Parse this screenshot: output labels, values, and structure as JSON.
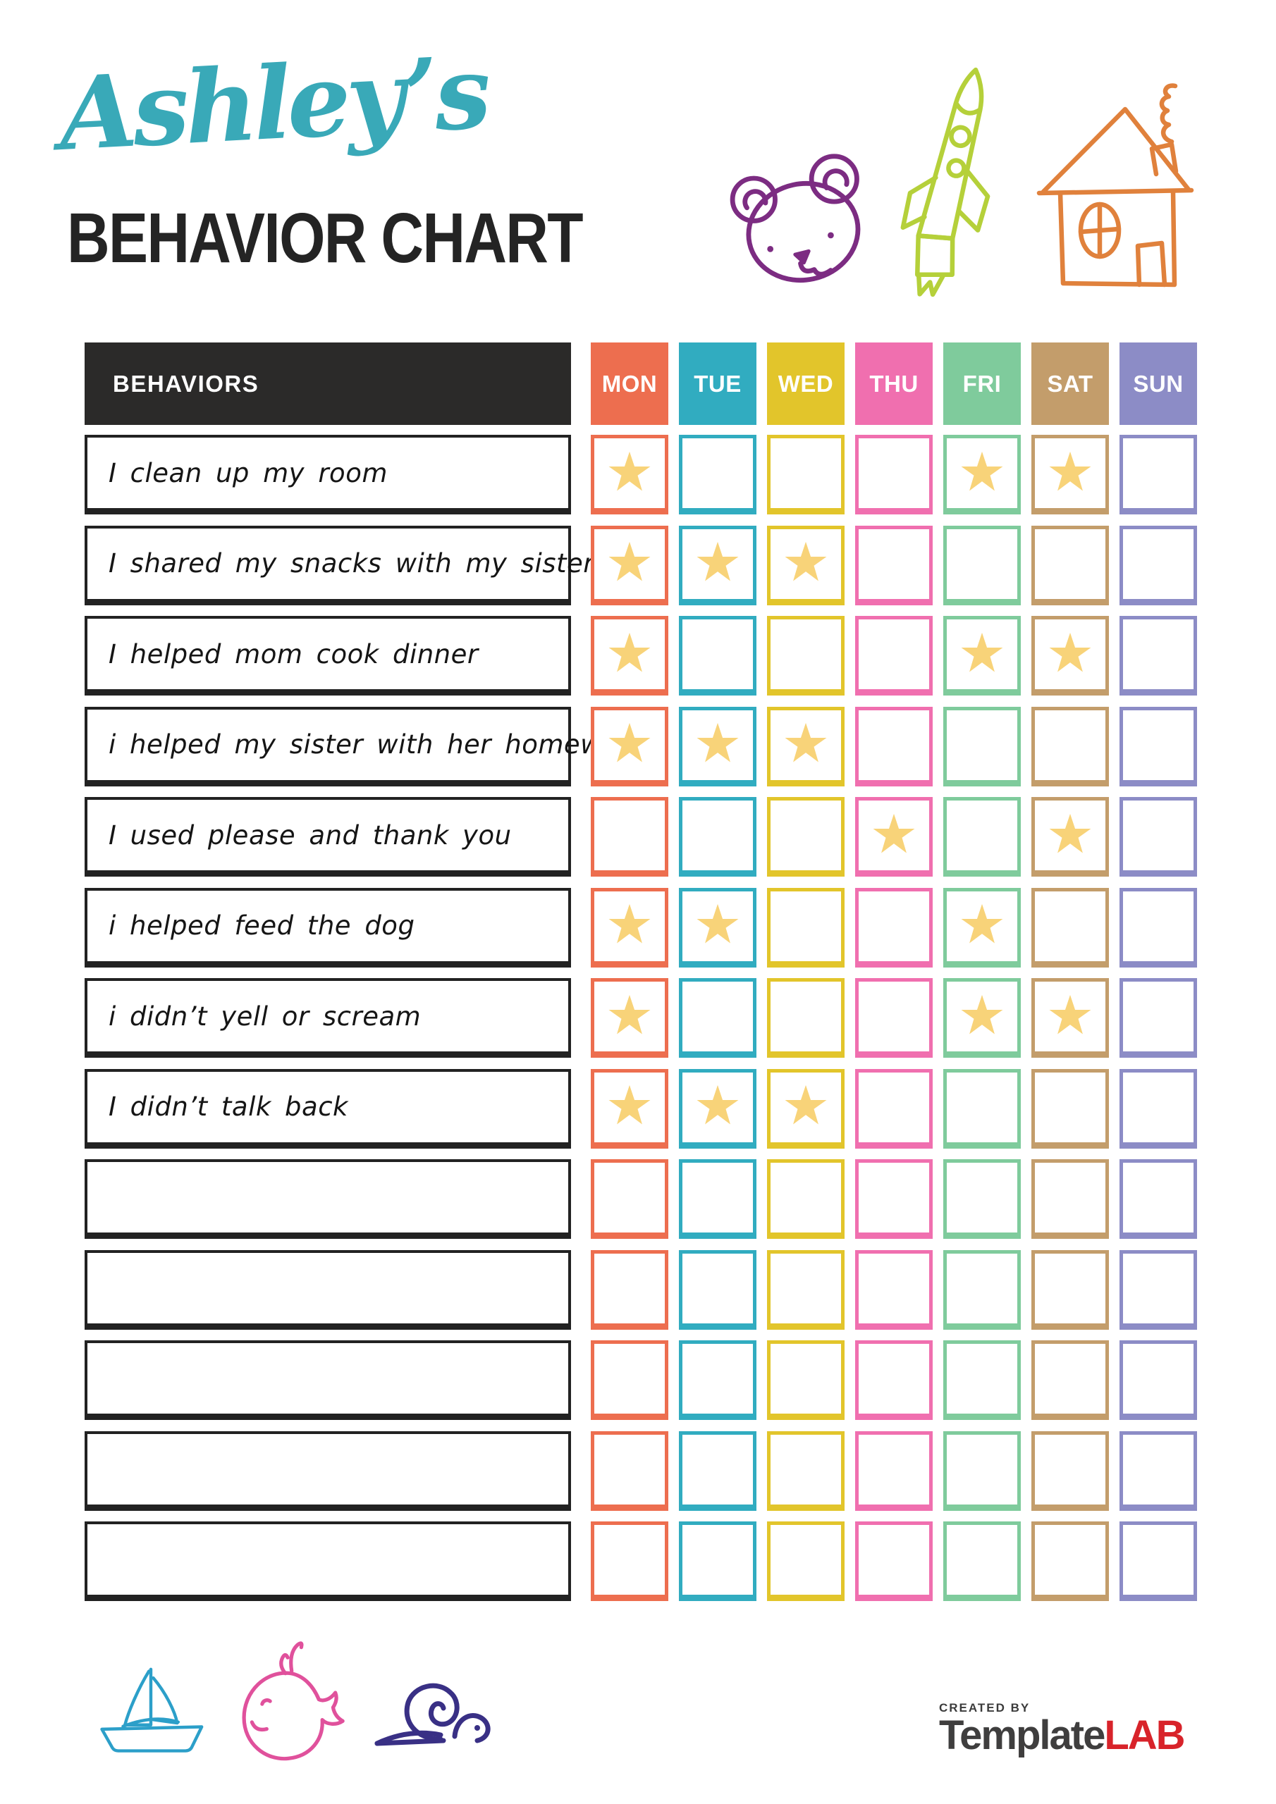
{
  "title": {
    "name": "Ashley’s",
    "subtitle": "BEHAVIOR CHART"
  },
  "table": {
    "behaviors_label": "BEHAVIORS",
    "days": [
      {
        "label": "MON",
        "color": "#ED6E4F"
      },
      {
        "label": "TUE",
        "color": "#31ACC0"
      },
      {
        "label": "WED",
        "color": "#E2C52B"
      },
      {
        "label": "THU",
        "color": "#F06FAF"
      },
      {
        "label": "FRI",
        "color": "#7FCB9C"
      },
      {
        "label": "SAT",
        "color": "#C39D6B"
      },
      {
        "label": "SUN",
        "color": "#8C8CC6"
      }
    ],
    "rows": [
      {
        "label": "I clean up my room",
        "starred_days": [
          "MON",
          "FRI",
          "SAT"
        ]
      },
      {
        "label": "I shared my snacks with my sister",
        "starred_days": [
          "MON",
          "TUE",
          "WED"
        ]
      },
      {
        "label": "I helped mom cook dinner",
        "starred_days": [
          "MON",
          "FRI",
          "SAT"
        ]
      },
      {
        "label": "i helped my sister with her homework",
        "starred_days": [
          "MON",
          "TUE",
          "WED"
        ]
      },
      {
        "label": "I used please and thank you",
        "starred_days": [
          "THU",
          "SAT"
        ]
      },
      {
        "label": "i helped feed the dog",
        "starred_days": [
          "MON",
          "TUE",
          "FRI"
        ]
      },
      {
        "label": "i didn’t yell or scream",
        "starred_days": [
          "MON",
          "FRI",
          "SAT"
        ]
      },
      {
        "label": "I didn’t talk back",
        "starred_days": [
          "MON",
          "TUE",
          "WED"
        ]
      },
      {
        "label": "",
        "starred_days": []
      },
      {
        "label": "",
        "starred_days": []
      },
      {
        "label": "",
        "starred_days": []
      },
      {
        "label": "",
        "starred_days": []
      },
      {
        "label": "",
        "starred_days": []
      }
    ]
  },
  "colors": {
    "title_script": "#39A9B8",
    "title_main": "#242424",
    "header_bar_bg": "#2B2A29",
    "row_border": "#222222",
    "star": "#F8D379",
    "bear_doodle": "#7C2C82",
    "rocket_doodle": "#B5D03A",
    "house_doodle": "#E0813C",
    "sailboat_doodle": "#2C9FC9",
    "whale_doodle": "#E0519C",
    "snail_doodle": "#393085",
    "logo_primary": "#3F3E3E",
    "logo_accent": "#D8232A"
  },
  "decorations": {
    "top": [
      "bear-doodle",
      "rocket-doodle",
      "house-doodle"
    ],
    "bottom": [
      "sailboat-doodle",
      "whale-doodle",
      "snail-doodle"
    ]
  },
  "footer": {
    "created_by": "CREATED BY",
    "brand_primary": "Template",
    "brand_accent": "LAB"
  }
}
